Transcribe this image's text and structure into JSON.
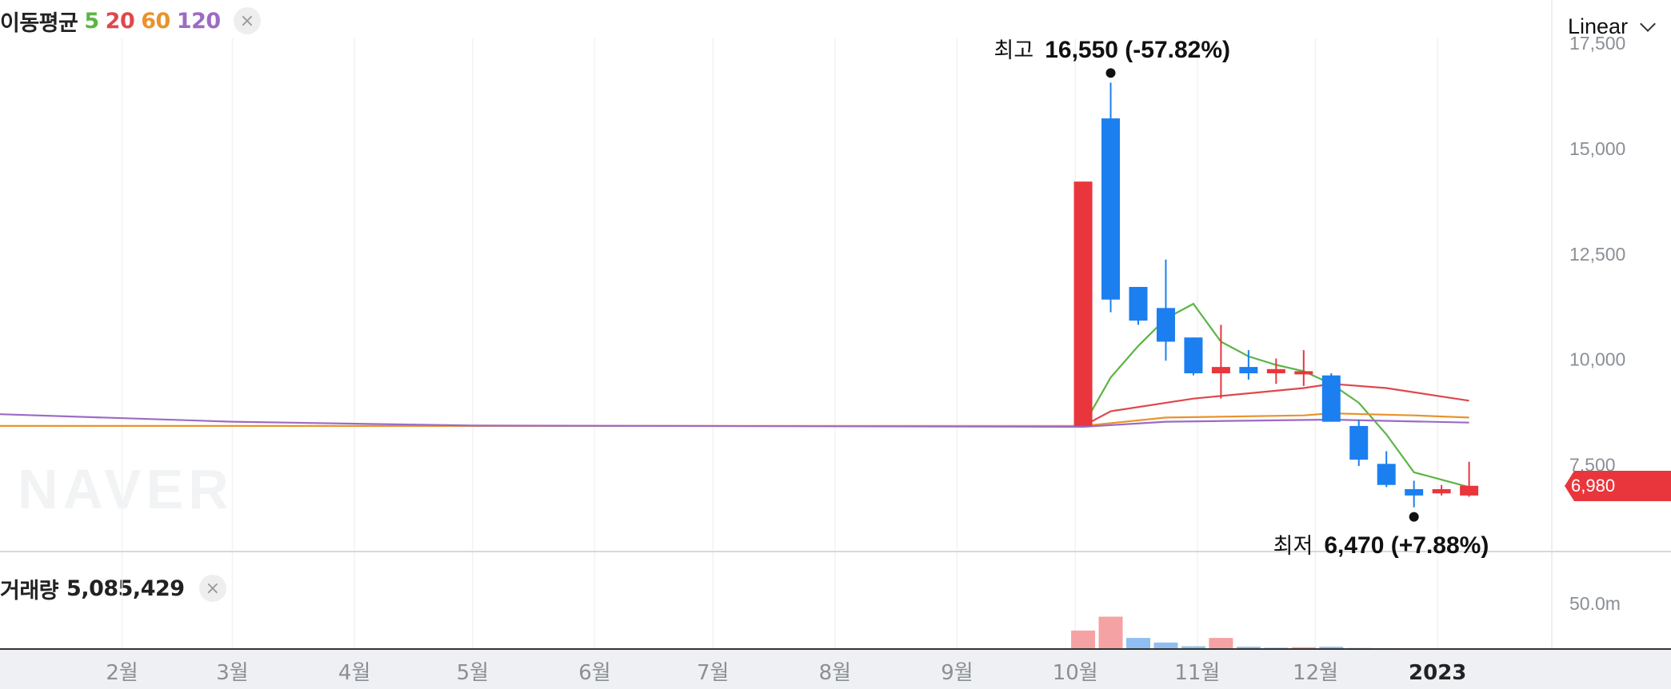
{
  "scale": {
    "label": "Linear"
  },
  "legend": {
    "title": "이동평균",
    "items": [
      {
        "label": "5",
        "color": "#5bb544"
      },
      {
        "label": "20",
        "color": "#e0474c"
      },
      {
        "label": "60",
        "color": "#e8932e"
      },
      {
        "label": "120",
        "color": "#9c6bc4"
      }
    ],
    "close_symbol": "×"
  },
  "volume_legend": {
    "label": "거래량",
    "value": "5,085,429",
    "close_symbol": "×"
  },
  "watermark": "NAVER",
  "annotations": {
    "high": {
      "label": "최고",
      "value": "16,550 (-57.82%)"
    },
    "low": {
      "label": "최저",
      "value": "6,470 (+7.88%)"
    }
  },
  "current_price": {
    "value": "6,980",
    "color": "#e8363c"
  },
  "colors": {
    "up": "#e8363c",
    "down": "#1b7ff0",
    "up_vol": "#f4a2a3",
    "down_vol": "#8fbff2"
  },
  "chart_data": {
    "type": "candlestick",
    "x_axis": {
      "type": "time",
      "ticks": [
        {
          "label": "2월",
          "date": "2022-02-01"
        },
        {
          "label": "3월",
          "date": "2022-03-01"
        },
        {
          "label": "4월",
          "date": "2022-04-01"
        },
        {
          "label": "5월",
          "date": "2022-05-01"
        },
        {
          "label": "6월",
          "date": "2022-06-01"
        },
        {
          "label": "7월",
          "date": "2022-07-01"
        },
        {
          "label": "8월",
          "date": "2022-08-01"
        },
        {
          "label": "9월",
          "date": "2022-09-01"
        },
        {
          "label": "10월",
          "date": "2022-10-01"
        },
        {
          "label": "11월",
          "date": "2022-11-01"
        },
        {
          "label": "12월",
          "date": "2022-12-01"
        },
        {
          "label": "2023",
          "date": "2023-01-01"
        }
      ],
      "range": [
        "2022-01-01",
        "2023-01-30"
      ]
    },
    "y_axis": {
      "scale": "linear",
      "ticks": [
        7500,
        10000,
        12500,
        15000,
        17500
      ],
      "tick_labels": [
        "7,500",
        "10,000",
        "12,500",
        "15,000",
        "17,500"
      ],
      "range": [
        5420,
        18510
      ]
    },
    "volume_axis": {
      "ticks": [
        50000000
      ],
      "tick_labels": [
        "50.0m"
      ],
      "range": [
        0,
        83000000
      ]
    },
    "candles": [
      {
        "date": "2022-10-03",
        "open": 8400,
        "high": 14200,
        "low": 8400,
        "close": 14200
      },
      {
        "date": "2022-10-10",
        "open": 15700,
        "high": 16550,
        "low": 11100,
        "close": 11400
      },
      {
        "date": "2022-10-17",
        "open": 11700,
        "high": 11700,
        "low": 10800,
        "close": 10900
      },
      {
        "date": "2022-10-24",
        "open": 11200,
        "high": 12350,
        "low": 9950,
        "close": 10400
      },
      {
        "date": "2022-10-31",
        "open": 10500,
        "high": 10500,
        "low": 9600,
        "close": 9650
      },
      {
        "date": "2022-11-07",
        "open": 9650,
        "high": 10800,
        "low": 9050,
        "close": 9800
      },
      {
        "date": "2022-11-14",
        "open": 9800,
        "high": 10200,
        "low": 9500,
        "close": 9650
      },
      {
        "date": "2022-11-21",
        "open": 9650,
        "high": 10000,
        "low": 9400,
        "close": 9750
      },
      {
        "date": "2022-11-28",
        "open": 9700,
        "high": 10200,
        "low": 9350,
        "close": 9700
      },
      {
        "date": "2022-12-05",
        "open": 9600,
        "high": 9650,
        "low": 8500,
        "close": 8500
      },
      {
        "date": "2022-12-12",
        "open": 8400,
        "high": 8550,
        "low": 7450,
        "close": 7600
      },
      {
        "date": "2022-12-19",
        "open": 7500,
        "high": 7800,
        "low": 6950,
        "close": 7000
      },
      {
        "date": "2022-12-26",
        "open": 6900,
        "high": 7100,
        "low": 6470,
        "close": 6750
      },
      {
        "date": "2023-01-02",
        "open": 6800,
        "high": 7000,
        "low": 6750,
        "close": 6900
      },
      {
        "date": "2023-01-09",
        "open": 6750,
        "high": 7550,
        "low": 6720,
        "close": 6980
      }
    ],
    "volume": [
      {
        "date": "2022-10-03",
        "value": 20000000,
        "dir": "up"
      },
      {
        "date": "2022-10-10",
        "value": 35000000,
        "dir": "up"
      },
      {
        "date": "2022-10-17",
        "value": 12000000,
        "dir": "down"
      },
      {
        "date": "2022-10-24",
        "value": 7000000,
        "dir": "down"
      },
      {
        "date": "2022-10-31",
        "value": 3000000,
        "dir": "down"
      },
      {
        "date": "2022-11-07",
        "value": 12000000,
        "dir": "up"
      },
      {
        "date": "2022-11-14",
        "value": 2500000,
        "dir": "down"
      },
      {
        "date": "2022-11-21",
        "value": 1500000,
        "dir": "down"
      },
      {
        "date": "2022-11-28",
        "value": 2000000,
        "dir": "up"
      },
      {
        "date": "2022-12-05",
        "value": 2500000,
        "dir": "down"
      },
      {
        "date": "2022-12-12",
        "value": 1200000,
        "dir": "down"
      },
      {
        "date": "2022-12-19",
        "value": 1000000,
        "dir": "down"
      },
      {
        "date": "2022-12-26",
        "value": 800000,
        "dir": "down"
      },
      {
        "date": "2023-01-02",
        "value": 700000,
        "dir": "down"
      },
      {
        "date": "2023-01-09",
        "value": 600000,
        "dir": "up"
      }
    ],
    "moving_averages": [
      {
        "name": "5",
        "color": "#5bb544",
        "points": [
          [
            "2022-10-03",
            8400
          ],
          [
            "2022-10-10",
            9550
          ],
          [
            "2022-10-17",
            10300
          ],
          [
            "2022-10-24",
            10950
          ],
          [
            "2022-10-31",
            11300
          ],
          [
            "2022-11-07",
            10400
          ],
          [
            "2022-11-14",
            10050
          ],
          [
            "2022-11-21",
            9850
          ],
          [
            "2022-11-28",
            9700
          ],
          [
            "2022-12-05",
            9400
          ],
          [
            "2022-12-12",
            8950
          ],
          [
            "2022-12-19",
            8200
          ],
          [
            "2022-12-26",
            7300
          ],
          [
            "2023-01-09",
            6950
          ]
        ]
      },
      {
        "name": "20",
        "color": "#e0474c",
        "points": [
          [
            "2022-10-03",
            8400
          ],
          [
            "2022-10-10",
            8750
          ],
          [
            "2022-10-31",
            9050
          ],
          [
            "2022-11-28",
            9300
          ],
          [
            "2022-12-05",
            9400
          ],
          [
            "2022-12-19",
            9300
          ],
          [
            "2023-01-09",
            9000
          ]
        ]
      },
      {
        "name": "60",
        "color": "#e8932e",
        "points": [
          [
            "2022-01-01",
            8400
          ],
          [
            "2022-10-03",
            8400
          ],
          [
            "2022-10-24",
            8600
          ],
          [
            "2022-11-28",
            8650
          ],
          [
            "2022-12-05",
            8700
          ],
          [
            "2022-12-26",
            8650
          ],
          [
            "2023-01-09",
            8600
          ]
        ]
      },
      {
        "name": "120",
        "color": "#9c6bc4",
        "points": [
          [
            "2022-01-01",
            8680
          ],
          [
            "2022-03-01",
            8500
          ],
          [
            "2022-05-01",
            8410
          ],
          [
            "2022-10-03",
            8380
          ],
          [
            "2022-10-24",
            8500
          ],
          [
            "2022-12-05",
            8550
          ],
          [
            "2023-01-09",
            8480
          ]
        ]
      }
    ],
    "markers": {
      "high": {
        "date": "2022-10-10",
        "value": 16550
      },
      "low": {
        "date": "2022-12-26",
        "value": 6470
      }
    }
  }
}
